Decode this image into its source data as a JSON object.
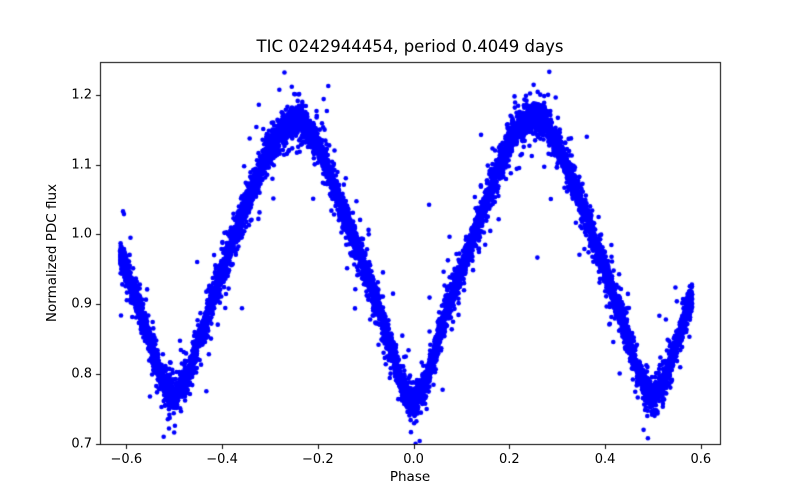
{
  "figure": {
    "background": "#ffffff"
  },
  "chart_data": {
    "type": "scatter",
    "title": "TIC 0242944454, period 0.4049 days",
    "xlabel": "Phase",
    "ylabel": "Normalized PDC flux",
    "xlim": [
      -0.655,
      0.64
    ],
    "ylim": [
      0.7,
      1.247
    ],
    "x_ticks": [
      -0.6,
      -0.4,
      -0.2,
      0.0,
      0.2,
      0.4,
      0.6
    ],
    "x_tick_labels": [
      "−0.6",
      "−0.4",
      "−0.2",
      "0.0",
      "0.2",
      "0.4",
      "0.6"
    ],
    "y_ticks": [
      0.7,
      0.8,
      0.9,
      1.0,
      1.1,
      1.2
    ],
    "y_tick_labels": [
      "0.7",
      "0.8",
      "0.9",
      "1.0",
      "1.1",
      "1.2"
    ],
    "grid": false,
    "legend": null,
    "marker_color": "#0000ff",
    "marker_radius_px": 2.3,
    "spine_color": "#000000",
    "description": "Phase-folded light curve scatter; dense band tracing a contact-binary curve with maxima near phase ±0.25 and sharp minima at phase 0.0 and ±0.5",
    "phase_range": [
      -0.613,
      0.582
    ],
    "n_points": 9500,
    "noise_components": [
      {
        "fraction": 0.744,
        "sigma": 0.009
      },
      {
        "fraction": 0.22,
        "sigma": 0.018
      },
      {
        "fraction": 0.03,
        "sigma": 0.042
      },
      {
        "fraction": 0.006,
        "sigma": 0.085
      }
    ],
    "mean_curve": [
      [
        -0.5,
        0.765
      ],
      [
        -0.475,
        0.793
      ],
      [
        -0.45,
        0.845
      ],
      [
        -0.425,
        0.898
      ],
      [
        -0.4,
        0.947
      ],
      [
        -0.375,
        0.996
      ],
      [
        -0.35,
        1.042
      ],
      [
        -0.325,
        1.086
      ],
      [
        -0.3,
        1.125
      ],
      [
        -0.275,
        1.152
      ],
      [
        -0.25,
        1.163
      ],
      [
        -0.225,
        1.156
      ],
      [
        -0.2,
        1.127
      ],
      [
        -0.175,
        1.085
      ],
      [
        -0.15,
        1.04
      ],
      [
        -0.125,
        0.994
      ],
      [
        -0.1,
        0.947
      ],
      [
        -0.075,
        0.898
      ],
      [
        -0.05,
        0.845
      ],
      [
        -0.025,
        0.787
      ],
      [
        0.0,
        0.757
      ],
      [
        0.025,
        0.787
      ],
      [
        0.05,
        0.847
      ],
      [
        0.075,
        0.902
      ],
      [
        0.1,
        0.95
      ],
      [
        0.125,
        0.998
      ],
      [
        0.15,
        1.045
      ],
      [
        0.175,
        1.09
      ],
      [
        0.2,
        1.131
      ],
      [
        0.225,
        1.16
      ],
      [
        0.25,
        1.17
      ],
      [
        0.275,
        1.16
      ],
      [
        0.3,
        1.13
      ],
      [
        0.325,
        1.088
      ],
      [
        0.35,
        1.044
      ],
      [
        0.375,
        0.998
      ],
      [
        0.4,
        0.948
      ],
      [
        0.425,
        0.898
      ],
      [
        0.45,
        0.845
      ],
      [
        0.475,
        0.792
      ],
      [
        0.5,
        0.765
      ]
    ]
  }
}
